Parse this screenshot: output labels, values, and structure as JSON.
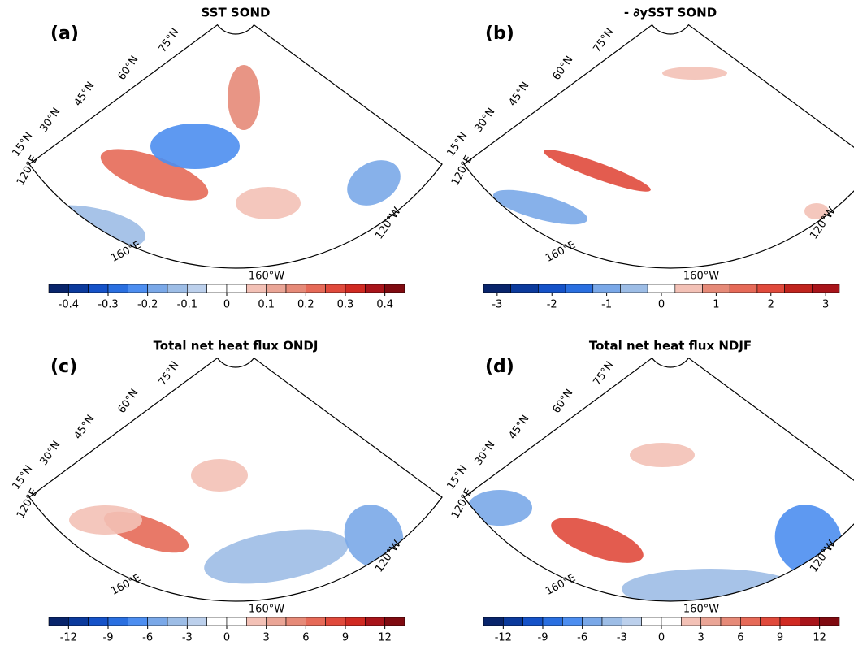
{
  "panels": [
    {
      "label": "(a)",
      "title": "SST SOND",
      "lat_labels": [
        "15°N",
        "30°N",
        "45°N",
        "60°N",
        "75°N"
      ],
      "lon_labels": [
        "120°E",
        "160°E",
        "160°W",
        "120°W"
      ],
      "colorbar": {
        "clim": [
          -0.45,
          0.45
        ],
        "ticks": [
          -0.4,
          -0.3,
          -0.2,
          -0.1,
          0,
          0.1,
          0.2,
          0.3,
          0.4
        ],
        "colors": [
          "#08246b",
          "#0b3a9c",
          "#1552c8",
          "#2a6fe0",
          "#4d8ef0",
          "#7aa8e8",
          "#9dbde6",
          "#bcd0ec",
          "#ffffff",
          "#ffffff",
          "#f3c1b6",
          "#eaa596",
          "#e68a78",
          "#e66a58",
          "#e04a3c",
          "#d02a22",
          "#a8141a",
          "#7f0a10"
        ]
      }
    },
    {
      "label": "(b)",
      "title": "- ∂ySST SOND",
      "lat_labels": [
        "15°N",
        "30°N",
        "45°N",
        "60°N",
        "75°N"
      ],
      "lon_labels": [
        "120°E",
        "160°E",
        "160°W",
        "120°W"
      ],
      "colorbar": {
        "clim": [
          -3.25,
          3.25
        ],
        "ticks": [
          -3,
          -2,
          -1,
          0,
          1,
          2,
          3
        ],
        "colors": [
          "#08246b",
          "#0b3a9c",
          "#1552c8",
          "#2a6fe0",
          "#7aa8e8",
          "#9dbde6",
          "#ffffff",
          "#f3c1b6",
          "#e68a78",
          "#e66a58",
          "#e04a3c",
          "#c0241e",
          "#a8141a"
        ]
      }
    },
    {
      "label": "(c)",
      "title": "Total net heat flux ONDJ",
      "lat_labels": [
        "15°N",
        "30°N",
        "45°N",
        "60°N",
        "75°N"
      ],
      "lon_labels": [
        "120°E",
        "160°E",
        "160°W",
        "120°W"
      ],
      "colorbar": {
        "clim": [
          -13.5,
          13.5
        ],
        "ticks": [
          -12,
          -9,
          -6,
          -3,
          0,
          3,
          6,
          9,
          12
        ],
        "colors": [
          "#08246b",
          "#0b3a9c",
          "#1552c8",
          "#2a6fe0",
          "#4d8ef0",
          "#7aa8e8",
          "#9dbde6",
          "#bcd0ec",
          "#ffffff",
          "#ffffff",
          "#f3c1b6",
          "#eaa596",
          "#e68a78",
          "#e66a58",
          "#e04a3c",
          "#d02a22",
          "#a8141a",
          "#7f0a10"
        ]
      }
    },
    {
      "label": "(d)",
      "title": "Total net heat flux NDJF",
      "lat_labels": [
        "15°N",
        "30°N",
        "45°N",
        "60°N",
        "75°N"
      ],
      "lon_labels": [
        "120°E",
        "160°E",
        "160°W",
        "120°W"
      ],
      "colorbar": {
        "clim": [
          -13.5,
          13.5
        ],
        "ticks": [
          -12,
          -9,
          -6,
          -3,
          0,
          3,
          6,
          9,
          12
        ],
        "colors": [
          "#08246b",
          "#0b3a9c",
          "#1552c8",
          "#2a6fe0",
          "#4d8ef0",
          "#7aa8e8",
          "#9dbde6",
          "#bcd0ec",
          "#ffffff",
          "#ffffff",
          "#f3c1b6",
          "#eaa596",
          "#e68a78",
          "#e66a58",
          "#e04a3c",
          "#d02a22",
          "#a8141a",
          "#7f0a10"
        ]
      }
    }
  ]
}
